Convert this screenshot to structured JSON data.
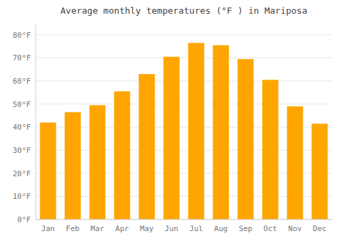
{
  "chart_data": {
    "type": "bar",
    "title": "Average monthly temperatures (°F ) in Mariposa",
    "categories": [
      "Jan",
      "Feb",
      "Mar",
      "Apr",
      "May",
      "Jun",
      "Jul",
      "Aug",
      "Sep",
      "Oct",
      "Nov",
      "Dec"
    ],
    "values": [
      42,
      46.5,
      49.5,
      55.5,
      63,
      70.5,
      76.5,
      75.5,
      69.5,
      60.5,
      49,
      41.5
    ],
    "color": "#FFA500",
    "ylim": [
      0,
      85
    ],
    "yticks": [
      {
        "value": 0,
        "label": "0°F"
      },
      {
        "value": 10,
        "label": "10°F"
      },
      {
        "value": 20,
        "label": "20°F"
      },
      {
        "value": 30,
        "label": "30°F"
      },
      {
        "value": 40,
        "label": "40°F"
      },
      {
        "value": 50,
        "label": "50°F"
      },
      {
        "value": 60,
        "label": "60°F"
      },
      {
        "value": 70,
        "label": "70°F"
      },
      {
        "value": 80,
        "label": "80°F"
      }
    ],
    "grid": true
  }
}
